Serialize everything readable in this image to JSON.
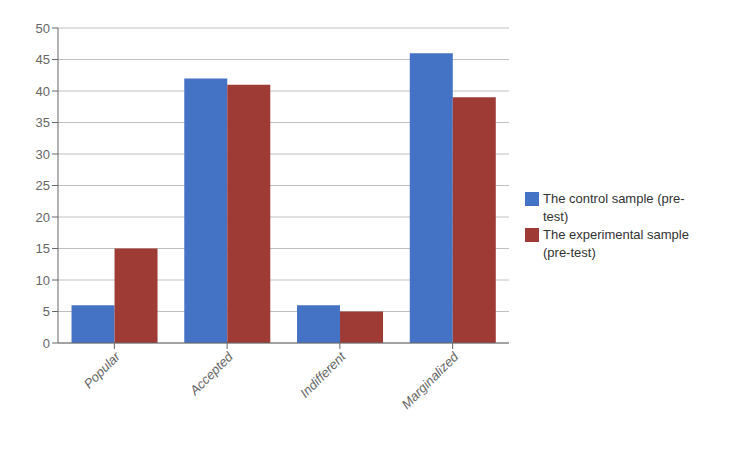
{
  "chart_data": {
    "type": "bar",
    "categories": [
      "Popular",
      "Accepted",
      "Indifferent",
      "Marginalized"
    ],
    "series": [
      {
        "name": "The control sample (pre-test)",
        "color": "#4472C4",
        "values": [
          6,
          42,
          6,
          46
        ]
      },
      {
        "name": "The experimental sample (pre-test)",
        "color": "#9E3B35",
        "values": [
          15,
          41,
          5,
          39
        ]
      }
    ],
    "ylim": [
      0,
      50
    ],
    "yticks": [
      0,
      5,
      10,
      15,
      20,
      25,
      30,
      35,
      40,
      45,
      50
    ],
    "grid": true,
    "legend": "right"
  }
}
